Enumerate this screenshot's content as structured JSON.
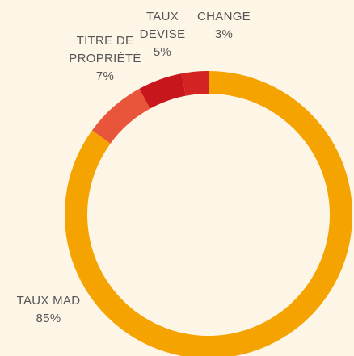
{
  "chart_data": {
    "type": "donut",
    "categories": [
      "TAUX MAD",
      "TITRE DE PROPRIÉTÉ",
      "TAUX DEVISE",
      "CHANGE"
    ],
    "values": [
      85,
      7,
      5,
      3
    ],
    "value_labels": [
      "85%",
      "7%",
      "5%",
      "3%"
    ],
    "colors": [
      "#f5a300",
      "#e8553a",
      "#c8161d",
      "#d42323"
    ]
  }
}
